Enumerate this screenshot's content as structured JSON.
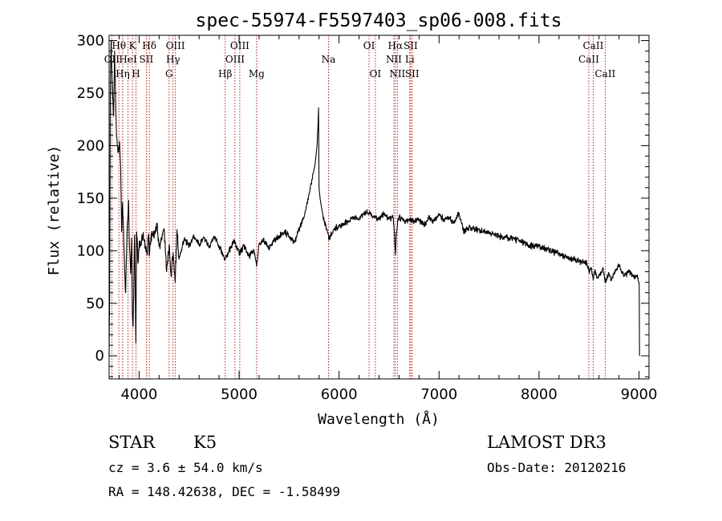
{
  "chart_data": {
    "type": "line",
    "title": "spec-55974-F5597403_sp06-008.fits",
    "xlabel": "Wavelength (Å)",
    "ylabel": "Flux (relative)",
    "xlim": [
      3700,
      9100
    ],
    "ylim": [
      -22,
      305
    ],
    "x_ticks": [
      4000,
      5000,
      6000,
      7000,
      8000,
      9000
    ],
    "y_ticks": [
      0,
      50,
      100,
      150,
      200,
      250,
      300
    ],
    "spectrum_anchors": {
      "wavelength": [
        3700,
        3705,
        3712,
        3720,
        3730,
        3745,
        3755,
        3765,
        3775,
        3785,
        3795,
        3805,
        3815,
        3825,
        3835,
        3850,
        3865,
        3880,
        3895,
        3905,
        3915,
        3925,
        3933,
        3940,
        3955,
        3968,
        3975,
        3990,
        4005,
        4020,
        4035,
        4050,
        4065,
        4080,
        4095,
        4102,
        4115,
        4130,
        4150,
        4175,
        4200,
        4225,
        4250,
        4275,
        4300,
        4320,
        4340,
        4360,
        4380,
        4400,
        4450,
        4500,
        4550,
        4600,
        4650,
        4700,
        4750,
        4800,
        4861,
        4900,
        4950,
        5000,
        5050,
        5100,
        5150,
        5175,
        5200,
        5250,
        5300,
        5350,
        5400,
        5450,
        5500,
        5550,
        5600,
        5650,
        5700,
        5730,
        5760,
        5780,
        5790,
        5795,
        5800,
        5810,
        5830,
        5850,
        5880,
        5900,
        5950,
        6000,
        6050,
        6100,
        6150,
        6200,
        6250,
        6300,
        6350,
        6400,
        6450,
        6500,
        6540,
        6555,
        6563,
        6570,
        6585,
        6600,
        6650,
        6700,
        6750,
        6800,
        6850,
        6900,
        6950,
        7000,
        7050,
        7100,
        7150,
        7200,
        7250,
        7300,
        7400,
        7500,
        7600,
        7700,
        7800,
        7900,
        8000,
        8100,
        8200,
        8300,
        8400,
        8480,
        8500,
        8520,
        8542,
        8560,
        8580,
        8600,
        8620,
        8640,
        8662,
        8680,
        8700,
        8720,
        8750,
        8800,
        8850,
        8900,
        8950,
        8990,
        9000,
        9005
      ],
      "flux": [
        0,
        48,
        248,
        300,
        262,
        228,
        290,
        242,
        208,
        200,
        194,
        204,
        182,
        118,
        146,
        100,
        60,
        120,
        148,
        102,
        78,
        112,
        40,
        28,
        115,
        12,
        118,
        88,
        108,
        105,
        112,
        110,
        103,
        96,
        116,
        95,
        106,
        118,
        112,
        126,
        104,
        110,
        121,
        80,
        105,
        76,
        98,
        70,
        120,
        92,
        111,
        105,
        114,
        106,
        112,
        103,
        114,
        104,
        92,
        100,
        109,
        98,
        104,
        95,
        100,
        85,
        106,
        109,
        103,
        110,
        113,
        118,
        114,
        108,
        120,
        132,
        154,
        168,
        182,
        200,
        222,
        236,
        160,
        150,
        138,
        128,
        120,
        112,
        120,
        124,
        126,
        128,
        132,
        130,
        136,
        136,
        132,
        130,
        135,
        130,
        132,
        115,
        96,
        112,
        128,
        132,
        128,
        130,
        128,
        130,
        124,
        131,
        128,
        134,
        130,
        132,
        126,
        136,
        118,
        122,
        120,
        117,
        114,
        112,
        110,
        105,
        104,
        100,
        98,
        93,
        90,
        88,
        80,
        84,
        72,
        82,
        74,
        76,
        80,
        84,
        70,
        74,
        78,
        72,
        79,
        86,
        76,
        80,
        76,
        74,
        70,
        66,
        0
      ]
    },
    "spectral_lines": [
      {
        "label": "OII",
        "wavelength": 3727,
        "row": 2
      },
      {
        "label": "Hθ",
        "wavelength": 3798,
        "row": 1
      },
      {
        "label": "Hη",
        "wavelength": 3835,
        "row": 3
      },
      {
        "label": "HeI",
        "wavelength": 3889,
        "row": 2
      },
      {
        "label": "K",
        "wavelength": 3934,
        "row": 1
      },
      {
        "label": "H",
        "wavelength": 3969,
        "row": 3
      },
      {
        "label": "SII",
        "wavelength": 4072,
        "row": 2
      },
      {
        "label": "Hδ",
        "wavelength": 4102,
        "row": 1
      },
      {
        "label": "G",
        "wavelength": 4300,
        "row": 3
      },
      {
        "label": "Hγ",
        "wavelength": 4340,
        "row": 2
      },
      {
        "label": "OIII",
        "wavelength": 4363,
        "row": 1
      },
      {
        "label": "Hβ",
        "wavelength": 4861,
        "row": 3
      },
      {
        "label": "OIII",
        "wavelength": 4959,
        "row": 2
      },
      {
        "label": "OIII",
        "wavelength": 5007,
        "row": 1
      },
      {
        "label": "Mg",
        "wavelength": 5175,
        "row": 3
      },
      {
        "label": "Na",
        "wavelength": 5894,
        "row": 2
      },
      {
        "label": "OI",
        "wavelength": 6300,
        "row": 1
      },
      {
        "label": "OI",
        "wavelength": 6363,
        "row": 3
      },
      {
        "label": "NII",
        "wavelength": 6548,
        "row": 2
      },
      {
        "label": "Hα",
        "wavelength": 6563,
        "row": 1
      },
      {
        "label": "NII",
        "wavelength": 6583,
        "row": 3
      },
      {
        "label": "Li",
        "wavelength": 6707,
        "row": 2
      },
      {
        "label": "SII",
        "wavelength": 6716,
        "row": 1
      },
      {
        "label": "SII",
        "wavelength": 6731,
        "row": 3
      },
      {
        "label": "CaII",
        "wavelength": 8498,
        "row": 2
      },
      {
        "label": "CaII",
        "wavelength": 8542,
        "row": 1
      },
      {
        "label": "CaII",
        "wavelength": 8662,
        "row": 3
      }
    ]
  },
  "info": {
    "object_class": "STAR",
    "subclass": "K5",
    "survey": "LAMOST DR3",
    "redshift_line": "cz = 3.6 ± 54.0 km/s",
    "obs_date_line": "Obs-Date: 20120216",
    "coords_line": "RA = 148.42638, DEC =  -1.58499"
  },
  "colors": {
    "spectrum": "#000000",
    "line_markers": "#cc0000",
    "axes": "#000000"
  }
}
